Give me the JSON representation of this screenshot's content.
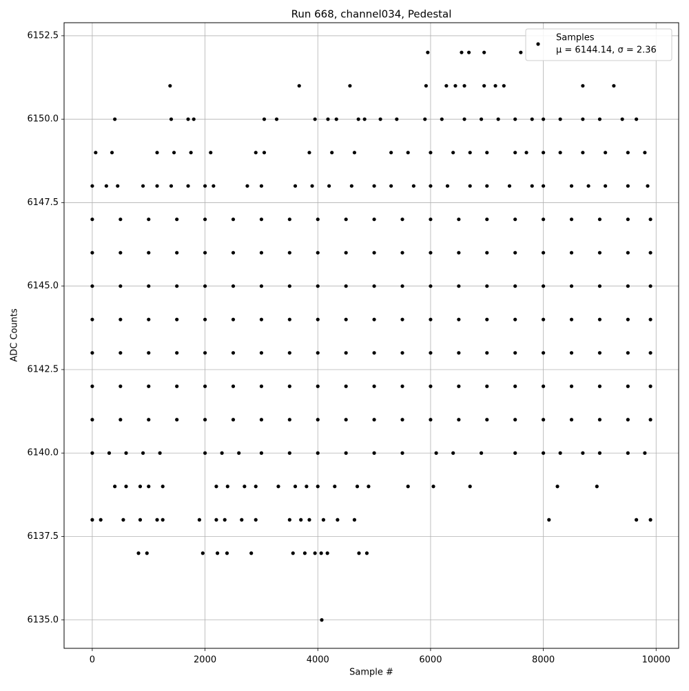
{
  "chart_data": {
    "type": "scatter",
    "title": "Run 668, channel034, Pedestal",
    "x_label": "Sample #",
    "y_label": "ADC Counts",
    "xlim": [
      -500,
      10400
    ],
    "ylim": [
      6134.15,
      6152.89
    ],
    "xticks": [
      0,
      2000,
      4000,
      6000,
      8000,
      10000
    ],
    "yticks": [
      {
        "value": 6135,
        "label": "6135.0"
      },
      {
        "value": 6137.5,
        "label": "6137.5"
      },
      {
        "value": 6140,
        "label": "6140.0"
      },
      {
        "value": 6142.5,
        "label": "6142.5"
      },
      {
        "value": 6145,
        "label": "6145.0"
      },
      {
        "value": 6147.5,
        "label": "6147.5"
      },
      {
        "value": 6150,
        "label": "6150.0"
      },
      {
        "value": 6152.5,
        "label": "6152.5"
      }
    ],
    "grid": true,
    "legend": "upper right",
    "legend_note": "μ = 6144.14, σ = 2.36",
    "series": [
      {
        "name": "Samples",
        "color": "#000000",
        "x": [
          0,
          500,
          1000,
          1500,
          2000,
          2500,
          3000,
          3500,
          4000,
          4500,
          5000,
          5500,
          6000,
          6500,
          7000,
          7500,
          8000,
          8500,
          9000,
          9500,
          9900,
          0,
          500,
          1000,
          1500,
          2000,
          2500,
          3000,
          3500,
          4000,
          4500,
          5000,
          5500,
          6000,
          6500,
          7000,
          7500,
          8000,
          8500,
          9000,
          9500,
          9900,
          0,
          500,
          1000,
          1500,
          2000,
          2500,
          3000,
          3500,
          4000,
          4500,
          5000,
          5500,
          6000,
          6500,
          7000,
          7500,
          8000,
          8500,
          9000,
          9500,
          9900,
          0,
          500,
          1000,
          1500,
          2000,
          2500,
          3000,
          3500,
          4000,
          4500,
          5000,
          5500,
          6000,
          6500,
          7000,
          7500,
          8000,
          8500,
          9000,
          9500,
          9900,
          0,
          500,
          1000,
          1500,
          2000,
          2500,
          3000,
          3500,
          4000,
          4500,
          5000,
          5500,
          6000,
          6500,
          7000,
          7500,
          8000,
          8500,
          9000,
          9500,
          9900,
          0,
          500,
          1000,
          1500,
          2000,
          2500,
          3000,
          3500,
          4000,
          4500,
          5000,
          5500,
          6000,
          6500,
          7000,
          7500,
          8000,
          8500,
          9000,
          9500,
          9900,
          0,
          500,
          1000,
          1500,
          2000,
          2500,
          3000,
          3500,
          4000,
          4500,
          5000,
          5500,
          6000,
          6500,
          7000,
          7500,
          8000,
          8500,
          9000,
          9500,
          9900,
          0,
          300,
          600,
          900,
          1200,
          2000,
          2300,
          2600,
          3000,
          3500,
          4000,
          4500,
          5000,
          5500,
          6100,
          6400,
          6900,
          7500,
          8000,
          8300,
          8700,
          9000,
          9500,
          9800,
          400,
          600,
          850,
          1000,
          1250,
          2200,
          2400,
          2700,
          2900,
          3300,
          3600,
          3800,
          4000,
          4300,
          4700,
          4900,
          5600,
          6050,
          6700,
          8250,
          8950,
          0,
          150,
          550,
          850,
          1150,
          1250,
          1900,
          2200,
          2350,
          2650,
          2900,
          3500,
          3700,
          3850,
          4100,
          4350,
          4650,
          8100,
          9650,
          9900,
          820,
          970,
          1960,
          2220,
          2390,
          2820,
          3560,
          3770,
          3950,
          4060,
          4170,
          4730,
          4870,
          4070,
          0,
          250,
          450,
          900,
          1150,
          1400,
          1700,
          2000,
          2150,
          2750,
          3000,
          3600,
          3900,
          4200,
          4600,
          5000,
          5300,
          5700,
          6000,
          6300,
          6700,
          7000,
          7400,
          7800,
          8000,
          8500,
          8800,
          9100,
          9500,
          9850,
          60,
          350,
          1150,
          1450,
          1750,
          2100,
          2900,
          3050,
          3850,
          4250,
          4650,
          5300,
          5600,
          6000,
          6400,
          6700,
          7000,
          7500,
          7700,
          8000,
          8300,
          8700,
          9100,
          9500,
          9800,
          400,
          1400,
          1700,
          1800,
          3050,
          3270,
          3950,
          4180,
          4330,
          4720,
          4830,
          5110,
          5400,
          5900,
          6200,
          6600,
          6900,
          7200,
          7500,
          7800,
          8000,
          8300,
          8700,
          9000,
          9400,
          9650,
          1380,
          3670,
          4570,
          5920,
          6280,
          6440,
          6600,
          6950,
          7150,
          7300,
          8700,
          9250,
          5950,
          6550,
          6680,
          6950,
          7600
        ],
        "values": [
          6147,
          6147,
          6147,
          6147,
          6147,
          6147,
          6147,
          6147,
          6147,
          6147,
          6147,
          6147,
          6147,
          6147,
          6147,
          6147,
          6147,
          6147,
          6147,
          6147,
          6147,
          6146,
          6146,
          6146,
          6146,
          6146,
          6146,
          6146,
          6146,
          6146,
          6146,
          6146,
          6146,
          6146,
          6146,
          6146,
          6146,
          6146,
          6146,
          6146,
          6146,
          6146,
          6145,
          6145,
          6145,
          6145,
          6145,
          6145,
          6145,
          6145,
          6145,
          6145,
          6145,
          6145,
          6145,
          6145,
          6145,
          6145,
          6145,
          6145,
          6145,
          6145,
          6145,
          6144,
          6144,
          6144,
          6144,
          6144,
          6144,
          6144,
          6144,
          6144,
          6144,
          6144,
          6144,
          6144,
          6144,
          6144,
          6144,
          6144,
          6144,
          6144,
          6144,
          6144,
          6143,
          6143,
          6143,
          6143,
          6143,
          6143,
          6143,
          6143,
          6143,
          6143,
          6143,
          6143,
          6143,
          6143,
          6143,
          6143,
          6143,
          6143,
          6143,
          6143,
          6143,
          6142,
          6142,
          6142,
          6142,
          6142,
          6142,
          6142,
          6142,
          6142,
          6142,
          6142,
          6142,
          6142,
          6142,
          6142,
          6142,
          6142,
          6142,
          6142,
          6142,
          6142,
          6141,
          6141,
          6141,
          6141,
          6141,
          6141,
          6141,
          6141,
          6141,
          6141,
          6141,
          6141,
          6141,
          6141,
          6141,
          6141,
          6141,
          6141,
          6141,
          6141,
          6141,
          6140,
          6140,
          6140,
          6140,
          6140,
          6140,
          6140,
          6140,
          6140,
          6140,
          6140,
          6140,
          6140,
          6140,
          6140,
          6140,
          6140,
          6140,
          6140,
          6140,
          6140,
          6140,
          6140,
          6140,
          6139,
          6139,
          6139,
          6139,
          6139,
          6139,
          6139,
          6139,
          6139,
          6139,
          6139,
          6139,
          6139,
          6139,
          6139,
          6139,
          6139,
          6139,
          6139,
          6139,
          6139,
          6138,
          6138,
          6138,
          6138,
          6138,
          6138,
          6138,
          6138,
          6138,
          6138,
          6138,
          6138,
          6138,
          6138,
          6138,
          6138,
          6138,
          6138,
          6138,
          6138,
          6137,
          6137,
          6137,
          6137,
          6137,
          6137,
          6137,
          6137,
          6137,
          6137,
          6137,
          6137,
          6137,
          6135,
          6148,
          6148,
          6148,
          6148,
          6148,
          6148,
          6148,
          6148,
          6148,
          6148,
          6148,
          6148,
          6148,
          6148,
          6148,
          6148,
          6148,
          6148,
          6148,
          6148,
          6148,
          6148,
          6148,
          6148,
          6148,
          6148,
          6148,
          6148,
          6148,
          6148,
          6149,
          6149,
          6149,
          6149,
          6149,
          6149,
          6149,
          6149,
          6149,
          6149,
          6149,
          6149,
          6149,
          6149,
          6149,
          6149,
          6149,
          6149,
          6149,
          6149,
          6149,
          6149,
          6149,
          6149,
          6149,
          6150,
          6150,
          6150,
          6150,
          6150,
          6150,
          6150,
          6150,
          6150,
          6150,
          6150,
          6150,
          6150,
          6150,
          6150,
          6150,
          6150,
          6150,
          6150,
          6150,
          6150,
          6150,
          6150,
          6150,
          6150,
          6150,
          6151,
          6151,
          6151,
          6151,
          6151,
          6151,
          6151,
          6151,
          6151,
          6151,
          6151,
          6151,
          6152,
          6152,
          6152,
          6152,
          6152
        ]
      }
    ]
  }
}
